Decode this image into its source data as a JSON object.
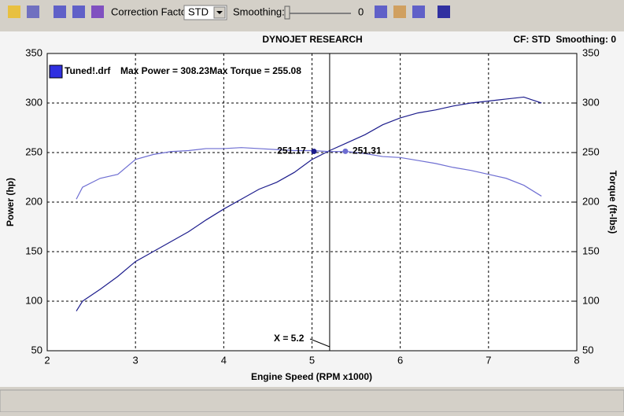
{
  "toolbar": {
    "correction_label": "Correction Factor:",
    "correction_value": "STD",
    "smoothing_label": "Smoothing:",
    "smoothing_value": "0"
  },
  "chart_data": {
    "type": "line",
    "title": "DYNOJET RESEARCH",
    "subtitle": "CF: STD  Smoothing: 0",
    "x_label": "Engine Speed (RPM x1000)",
    "y_label": "Power (hp)",
    "y2_label": "Torque (ft-lbs)",
    "legend_label": "Tuned!.drf",
    "legend_text": "Max Power = 308.23Max Torque = 255.08",
    "x": [
      2.33,
      2.4,
      2.6,
      2.8,
      3.0,
      3.2,
      3.4,
      3.6,
      3.8,
      4.0,
      4.2,
      4.4,
      4.6,
      4.8,
      5.0,
      5.2,
      5.4,
      5.6,
      5.8,
      6.0,
      6.2,
      6.4,
      6.6,
      6.8,
      7.0,
      7.2,
      7.4,
      7.6
    ],
    "series": [
      {
        "name": "Power",
        "color": "#1c1c8c",
        "values": [
          90,
          100,
          112,
          125,
          140,
          150,
          160,
          170,
          182,
          193,
          203,
          213,
          220,
          230,
          243,
          252,
          260,
          268,
          278,
          285,
          290,
          293,
          297,
          300,
          302,
          304,
          306,
          300
        ]
      },
      {
        "name": "Torque",
        "color": "#6e6ed2",
        "axis": "y2",
        "values": [
          203,
          215,
          224,
          228,
          243,
          248,
          251,
          252,
          254,
          254,
          255,
          254,
          253,
          252,
          252,
          251,
          251,
          249,
          246,
          245,
          242,
          239,
          235,
          232,
          228,
          224,
          217,
          206
        ]
      }
    ],
    "cursor": {
      "x": 5.2,
      "label": "X = 5.2",
      "readouts": [
        251.17,
        251.31
      ]
    },
    "xlim": [
      2,
      8
    ],
    "xticks": [
      2,
      3,
      4,
      5,
      6,
      7,
      8
    ],
    "ylim": [
      50,
      350
    ],
    "yticks": [
      50,
      100,
      150,
      200,
      250,
      300,
      350
    ],
    "y2lim": [
      50,
      350
    ],
    "y2ticks": [
      50,
      100,
      150,
      200,
      250,
      300,
      350
    ],
    "grid": true
  }
}
